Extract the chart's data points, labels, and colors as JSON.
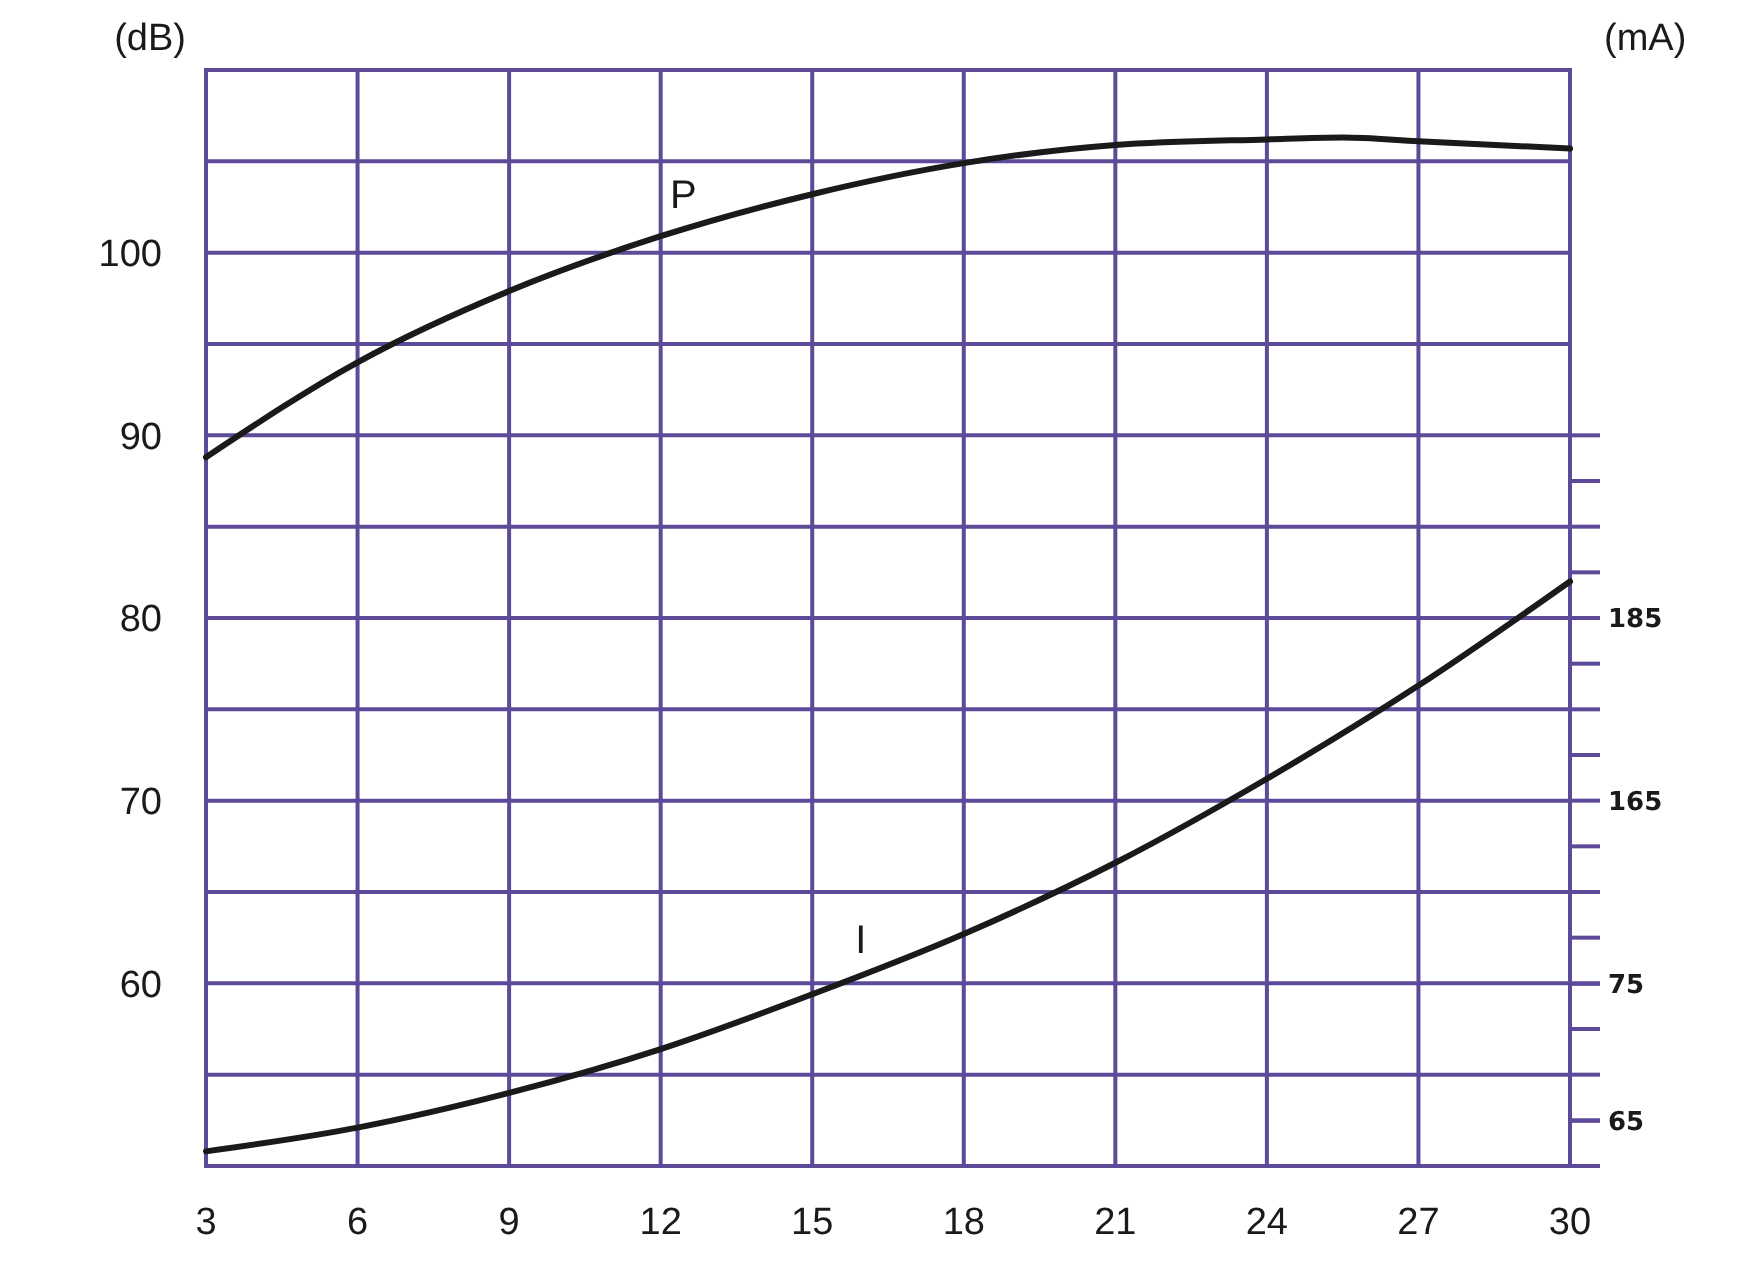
{
  "chart_data": {
    "type": "line",
    "ylabel": "(dB)",
    "y2label": "(mA)",
    "xlim": [
      3,
      30
    ],
    "xticks": [
      3,
      6,
      9,
      12,
      15,
      18,
      21,
      24,
      27,
      30
    ],
    "ylim": [
      50,
      110
    ],
    "yticks": [
      {
        "value": 55,
        "label": null
      },
      60,
      {
        "value": 65,
        "label": null
      },
      70,
      {
        "value": 75,
        "label": null
      },
      80,
      {
        "value": 85,
        "label": null
      },
      90,
      {
        "value": 95,
        "label": null
      },
      100,
      {
        "value": 105,
        "label": null
      }
    ],
    "y2lim": [
      125,
      245
    ],
    "y2ticks": [
      {
        "value": 125,
        "label": null
      },
      {
        "value": 130,
        "label": null
      },
      {
        "value": 135,
        "label": null
      },
      {
        "value": 140,
        "label": null
      },
      {
        "value": 145,
        "label": null
      },
      {
        "value": 150,
        "label": null
      },
      {
        "value": 155,
        "label": null
      },
      {
        "value": 160,
        "label": null
      },
      165,
      {
        "value": 170,
        "label": null
      },
      {
        "value": 175,
        "label": null
      },
      {
        "value": 180,
        "label": null
      },
      185,
      {
        "value": 190,
        "label": null
      },
      {
        "value": 195,
        "label": null
      },
      {
        "value": 200,
        "label": null
      },
      {
        "value": 205,
        "label": null
      }
    ],
    "y3lim": [
      61.7,
      141.7
    ],
    "y3ticks": [
      65,
      75
    ],
    "grid": true,
    "legend": false,
    "marker": "none",
    "line_style": "solid",
    "series": [
      {
        "name": "P",
        "color": "#1a1a1a",
        "x": [
          3,
          6,
          9,
          12,
          15,
          18,
          21,
          24,
          25.5,
          27,
          30
        ],
        "values": [
          88.8,
          94.0,
          97.9,
          100.9,
          103.2,
          104.9,
          105.9,
          106.2,
          106.3,
          106.1,
          105.7
        ]
      },
      {
        "name": "I",
        "color": "#1a1a1a",
        "x": [
          3,
          6,
          9,
          12,
          15,
          18,
          21,
          24,
          27,
          30
        ],
        "values": [
          50.8,
          52.1,
          54.0,
          56.4,
          59.4,
          62.7,
          66.6,
          71.2,
          76.3,
          82.0
        ]
      }
    ]
  }
}
